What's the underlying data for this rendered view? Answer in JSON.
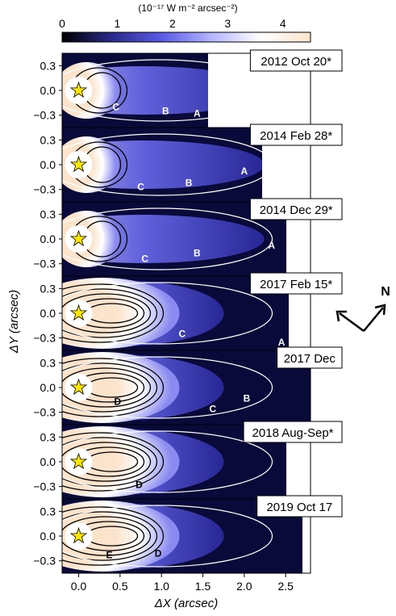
{
  "chart_data": {
    "type": "heatmap",
    "colorbar": {
      "unit": "(10⁻¹⁷ W m⁻² arcsec⁻²)",
      "ticks": [
        0,
        1,
        2,
        3,
        4
      ],
      "range": [
        0,
        4.5
      ],
      "colors": [
        "#000000",
        "#2a2a8c",
        "#5a5ae6",
        "#b4b4ff",
        "#ffffff",
        "#fbe3cc"
      ]
    },
    "xlabel": "ΔX (arcsec)",
    "ylabel": "ΔY (arcsec)",
    "xlim": [
      -0.2,
      2.8
    ],
    "ylim": [
      -0.45,
      0.45
    ],
    "xticks": [
      0.0,
      0.5,
      1.0,
      1.5,
      2.0,
      2.5
    ],
    "xtick_labels": [
      "0.0",
      "0.5",
      "1.0",
      "1.5",
      "2.0",
      "2.5"
    ],
    "yticks": [
      0.3,
      0.0,
      -0.3
    ],
    "ytick_labels": [
      "0.3",
      "0.0",
      "−0.3"
    ],
    "compass": {
      "label": "N"
    },
    "panels": [
      {
        "epoch": "2012 Oct 20*",
        "features": [
          {
            "label": "C",
            "x": 0.45,
            "y": -0.2
          },
          {
            "label": "B",
            "x": 1.05,
            "y": -0.25
          },
          {
            "label": "A",
            "x": 1.43,
            "y": -0.28
          }
        ]
      },
      {
        "epoch": "2014 Feb 28*",
        "features": [
          {
            "label": "C",
            "x": 0.75,
            "y": -0.27
          },
          {
            "label": "B",
            "x": 1.33,
            "y": -0.22
          },
          {
            "label": "A",
            "x": 2.0,
            "y": -0.08
          }
        ]
      },
      {
        "epoch": "2014 Dec 29*",
        "features": [
          {
            "label": "C",
            "x": 0.8,
            "y": -0.24
          },
          {
            "label": "B",
            "x": 1.43,
            "y": -0.17
          },
          {
            "label": "A",
            "x": 2.33,
            "y": -0.08
          }
        ]
      },
      {
        "epoch": "2017 Feb 15*",
        "features": [
          {
            "label": "C",
            "x": 1.25,
            "y": -0.25
          },
          {
            "label": "A",
            "x": 2.45,
            "y": -0.35
          }
        ]
      },
      {
        "epoch": "2017 Dec",
        "features": [
          {
            "label": "A",
            "x": 2.58,
            "y": 0.32
          },
          {
            "label": "B",
            "x": 2.03,
            "y": -0.13
          },
          {
            "label": "C",
            "x": 1.62,
            "y": -0.26
          },
          {
            "label": "D",
            "x": 0.47,
            "y": -0.17
          }
        ]
      },
      {
        "epoch": "2018 Aug-Sep*",
        "features": [
          {
            "label": "D",
            "x": 0.73,
            "y": -0.28
          }
        ]
      },
      {
        "epoch": "2019 Oct 17",
        "features": [
          {
            "label": "E",
            "x": 0.37,
            "y": -0.23
          },
          {
            "label": "D",
            "x": 0.96,
            "y": -0.21
          }
        ]
      }
    ]
  }
}
